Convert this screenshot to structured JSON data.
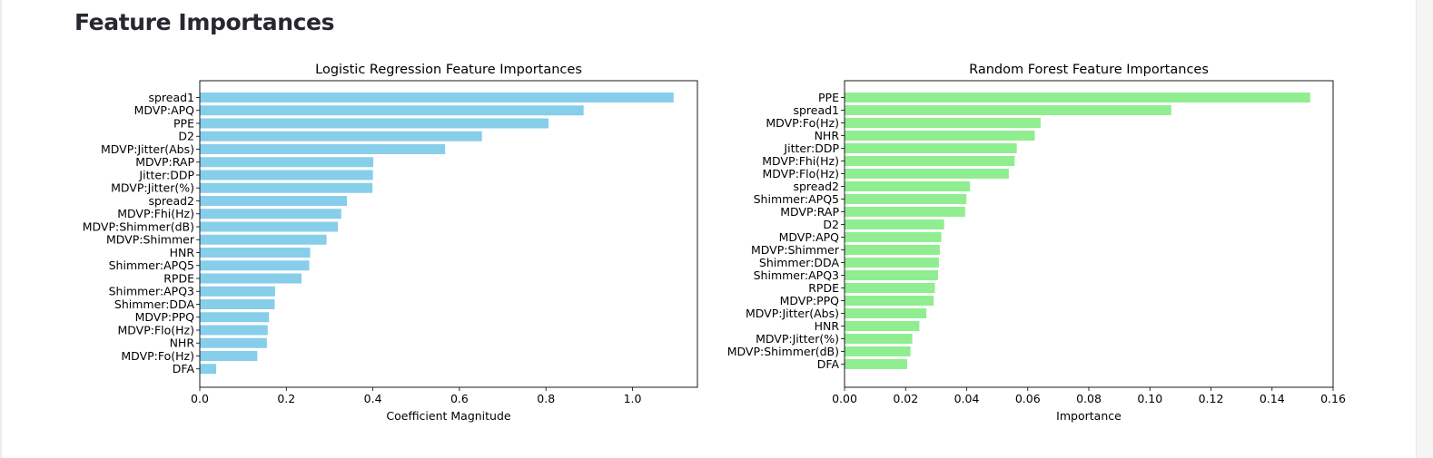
{
  "section": {
    "title": "Feature Importances"
  },
  "chart_data": [
    {
      "type": "bar",
      "orientation": "horizontal",
      "title": "Logistic Regression Feature Importances",
      "xlabel": "Coefficient Magnitude",
      "ylabel": "",
      "color": "#87ceeb",
      "xlim": [
        0,
        1.15
      ],
      "xticks": [
        "0.0",
        "0.2",
        "0.4",
        "0.6",
        "0.8",
        "1.0"
      ],
      "xtick_values": [
        0,
        0.2,
        0.4,
        0.6,
        0.8,
        1.0
      ],
      "categories": [
        "spread1",
        "MDVP:APQ",
        "PPE",
        "D2",
        "MDVP:Jitter(Abs)",
        "MDVP:RAP",
        "Jitter:DDP",
        "MDVP:Jitter(%)",
        "spread2",
        "MDVP:Fhi(Hz)",
        "MDVP:Shimmer(dB)",
        "MDVP:Shimmer",
        "HNR",
        "Shimmer:APQ5",
        "RPDE",
        "Shimmer:APQ3",
        "Shimmer:DDA",
        "MDVP:PPQ",
        "MDVP:Flo(Hz)",
        "NHR",
        "MDVP:Fo(Hz)",
        "DFA"
      ],
      "values": [
        1.095,
        0.887,
        0.806,
        0.652,
        0.567,
        0.401,
        0.4,
        0.399,
        0.34,
        0.327,
        0.319,
        0.293,
        0.255,
        0.253,
        0.235,
        0.174,
        0.173,
        0.16,
        0.157,
        0.155,
        0.133,
        0.038
      ]
    },
    {
      "type": "bar",
      "orientation": "horizontal",
      "title": "Random Forest Feature Importances",
      "xlabel": "Importance",
      "ylabel": "",
      "color": "#90ee90",
      "xlim": [
        0,
        0.16
      ],
      "xticks": [
        "0.00",
        "0.02",
        "0.04",
        "0.06",
        "0.08",
        "0.10",
        "0.12",
        "0.14",
        "0.16"
      ],
      "xtick_values": [
        0,
        0.02,
        0.04,
        0.06,
        0.08,
        0.1,
        0.12,
        0.14,
        0.16
      ],
      "categories": [
        "PPE",
        "spread1",
        "MDVP:Fo(Hz)",
        "NHR",
        "Jitter:DDP",
        "MDVP:Fhi(Hz)",
        "MDVP:Flo(Hz)",
        "spread2",
        "Shimmer:APQ5",
        "MDVP:RAP",
        "D2",
        "MDVP:APQ",
        "MDVP:Shimmer",
        "Shimmer:DDA",
        "Shimmer:APQ3",
        "RPDE",
        "MDVP:PPQ",
        "MDVP:Jitter(Abs)",
        "HNR",
        "MDVP:Jitter(%)",
        "MDVP:Shimmer(dB)",
        "DFA"
      ],
      "values": [
        0.1525,
        0.107,
        0.0642,
        0.0623,
        0.0564,
        0.0557,
        0.0538,
        0.0411,
        0.0399,
        0.0395,
        0.0326,
        0.0317,
        0.0312,
        0.0309,
        0.0306,
        0.0296,
        0.0292,
        0.0268,
        0.0245,
        0.0222,
        0.0216,
        0.0205
      ]
    }
  ]
}
